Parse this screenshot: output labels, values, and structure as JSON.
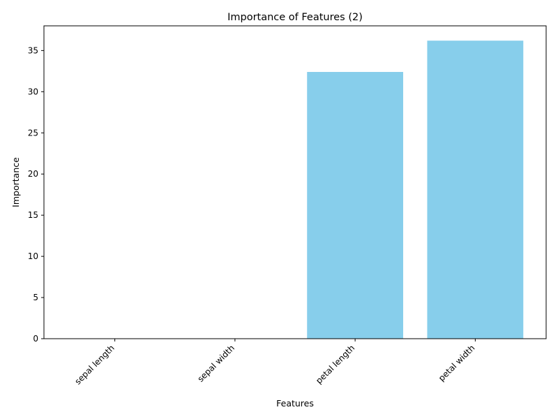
{
  "chart_data": {
    "type": "bar",
    "title": "Importance of Features (2)",
    "xlabel": "Features",
    "ylabel": "Importance",
    "categories": [
      "sepal length",
      "sepal width",
      "petal length",
      "petal width"
    ],
    "values": [
      0,
      0,
      32.4,
      36.2
    ],
    "ylim": [
      0,
      38
    ],
    "yticks": [
      0,
      5,
      10,
      15,
      20,
      25,
      30,
      35
    ],
    "ytick_labels": [
      "0",
      "5",
      "10",
      "15",
      "20",
      "25",
      "30",
      "35"
    ],
    "bar_color": "#87ceeb",
    "grid": false,
    "legend": "none"
  }
}
